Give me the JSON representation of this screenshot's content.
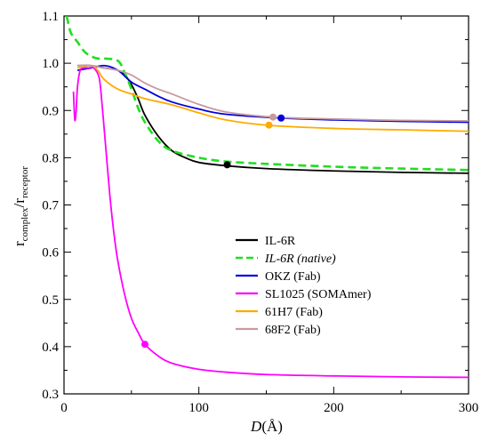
{
  "chart_data": {
    "type": "line",
    "xlabel": {
      "var": "D",
      "unit": "(Å)"
    },
    "ylabel": {
      "base_top": "r",
      "sub_top": "complex",
      "slash": "/",
      "base_bottom": "r",
      "sub_bottom": "receptor"
    },
    "xlim": [
      0,
      300
    ],
    "ylim": [
      0.3,
      1.1
    ],
    "xticks": [
      0,
      100,
      200,
      300
    ],
    "yticks": [
      0.3,
      0.4,
      0.5,
      0.6,
      0.7,
      0.8,
      0.9,
      1.0,
      1.1
    ],
    "grid": false,
    "legend_placement": "center-right",
    "series": [
      {
        "name": "IL-6R",
        "italic": false,
        "color": "#000000",
        "dashed": false,
        "x": [
          10,
          20,
          30,
          40,
          45,
          50,
          55,
          60,
          70,
          80,
          90,
          100,
          120,
          150,
          200,
          250,
          300
        ],
        "y": [
          0.995,
          0.995,
          0.99,
          0.985,
          0.975,
          0.955,
          0.925,
          0.89,
          0.845,
          0.815,
          0.8,
          0.79,
          0.783,
          0.777,
          0.772,
          0.769,
          0.767
        ],
        "marker": [
          121,
          0.785
        ]
      },
      {
        "name": "IL-6R (native)",
        "italic": true,
        "color": "#22dd22",
        "dashed": true,
        "x": [
          2,
          5,
          10,
          15,
          20,
          25,
          30,
          40,
          45,
          50,
          55,
          60,
          70,
          80,
          100,
          120,
          150,
          200,
          250,
          300
        ],
        "y": [
          1.1,
          1.065,
          1.045,
          1.025,
          1.015,
          1.01,
          1.01,
          1.005,
          0.98,
          0.945,
          0.905,
          0.875,
          0.835,
          0.815,
          0.8,
          0.792,
          0.787,
          0.781,
          0.777,
          0.774
        ]
      },
      {
        "name": "OKZ (Fab)",
        "italic": false,
        "color": "#0000dd",
        "dashed": false,
        "x": [
          10,
          20,
          30,
          40,
          50,
          60,
          70,
          80,
          100,
          120,
          160,
          200,
          250,
          300
        ],
        "y": [
          0.985,
          0.99,
          0.995,
          0.985,
          0.96,
          0.945,
          0.93,
          0.918,
          0.903,
          0.892,
          0.884,
          0.88,
          0.877,
          0.875
        ],
        "marker": [
          161,
          0.884
        ]
      },
      {
        "name": "SL1025 (SOMAmer)",
        "italic": false,
        "color": "#ff00ff",
        "dashed": false,
        "x": [
          7,
          8,
          9,
          10,
          12,
          15,
          18,
          22,
          26,
          28,
          31,
          34,
          37,
          40,
          45,
          50,
          55,
          60,
          70,
          80,
          100,
          120,
          150,
          200,
          250,
          300
        ],
        "y": [
          0.94,
          0.88,
          0.9,
          0.95,
          0.985,
          0.99,
          0.99,
          0.99,
          0.97,
          0.92,
          0.82,
          0.72,
          0.64,
          0.58,
          0.51,
          0.46,
          0.43,
          0.405,
          0.38,
          0.365,
          0.352,
          0.346,
          0.341,
          0.338,
          0.336,
          0.335
        ],
        "marker": [
          60,
          0.405
        ]
      },
      {
        "name": "61H7 (Fab)",
        "italic": false,
        "color": "#ffaa00",
        "dashed": false,
        "x": [
          10,
          20,
          25,
          30,
          40,
          50,
          60,
          80,
          100,
          120,
          150,
          200,
          250,
          300
        ],
        "y": [
          0.99,
          0.995,
          0.985,
          0.965,
          0.945,
          0.935,
          0.925,
          0.912,
          0.895,
          0.88,
          0.869,
          0.862,
          0.859,
          0.856
        ],
        "marker": [
          152,
          0.869
        ]
      },
      {
        "name": "68F2 (Fab)",
        "italic": false,
        "color": "#c89aa0",
        "dashed": false,
        "x": [
          10,
          20,
          30,
          40,
          50,
          60,
          70,
          80,
          100,
          120,
          155,
          200,
          250,
          300
        ],
        "y": [
          0.995,
          0.995,
          0.99,
          0.985,
          0.975,
          0.958,
          0.945,
          0.935,
          0.913,
          0.897,
          0.886,
          0.882,
          0.879,
          0.878
        ],
        "marker": [
          155,
          0.886
        ]
      }
    ]
  }
}
